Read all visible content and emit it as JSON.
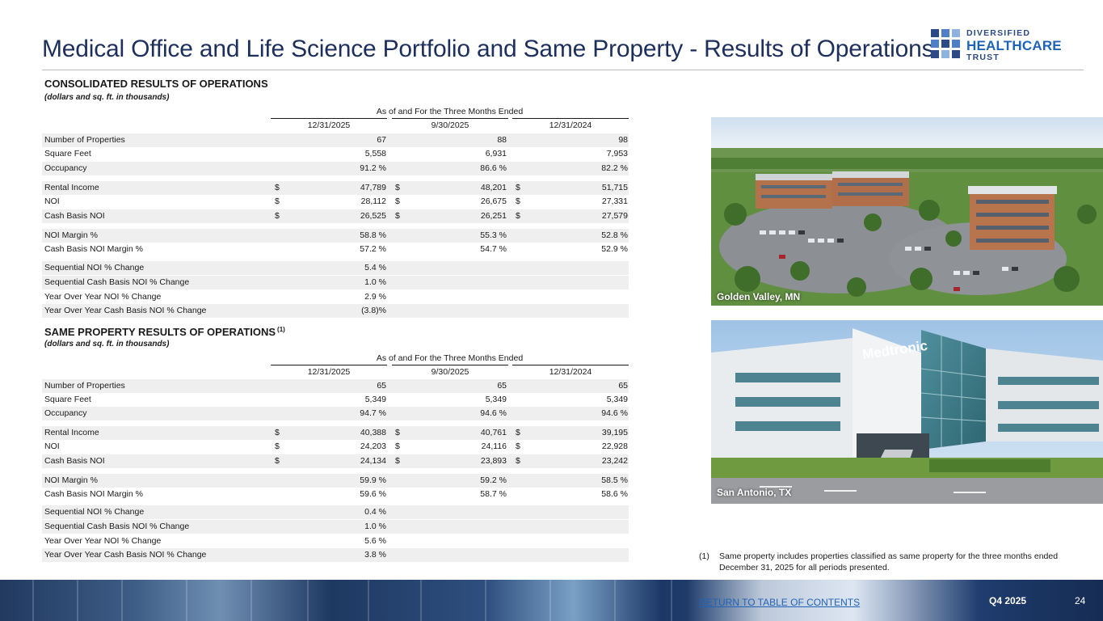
{
  "page": {
    "title": "Medical Office and Life Science Portfolio and Same Property - Results of Operations",
    "logo": {
      "line1": "DIVERSIFIED",
      "line2": "HEALTHCARE",
      "line3": "TRUST"
    }
  },
  "consolidated": {
    "title": "CONSOLIDATED RESULTS OF OPERATIONS",
    "subtitle": "(dollars and sq. ft. in thousands)",
    "group_header": "As of and For the Three Months Ended",
    "columns": [
      "12/31/2025",
      "9/30/2025",
      "12/31/2024"
    ],
    "rows": [
      {
        "label": "Number of Properties",
        "values": [
          "67",
          "88",
          "98"
        ],
        "dollar": false
      },
      {
        "label": "Square Feet",
        "values": [
          "5,558",
          "6,931",
          "7,953"
        ],
        "dollar": false
      },
      {
        "label": "Occupancy",
        "values": [
          "91.2 %",
          "86.6 %",
          "82.2 %"
        ],
        "dollar": false
      },
      {
        "label": "Rental Income",
        "values": [
          "47,789",
          "48,201",
          "51,715"
        ],
        "dollar": true
      },
      {
        "label": "NOI",
        "values": [
          "28,112",
          "26,675",
          "27,331"
        ],
        "dollar": true
      },
      {
        "label": "Cash Basis NOI",
        "values": [
          "26,525",
          "26,251",
          "27,579"
        ],
        "dollar": true
      },
      {
        "label": "NOI Margin %",
        "values": [
          "58.8 %",
          "55.3 %",
          "52.8 %"
        ],
        "dollar": false
      },
      {
        "label": "Cash Basis NOI Margin %",
        "values": [
          "57.2 %",
          "54.7 %",
          "52.9 %"
        ],
        "dollar": false
      },
      {
        "label": "Sequential NOI % Change",
        "values": [
          "5.4 %",
          "",
          ""
        ],
        "dollar": false
      },
      {
        "label": "Sequential Cash Basis NOI % Change",
        "values": [
          "1.0 %",
          "",
          ""
        ],
        "dollar": false
      },
      {
        "label": "Year Over Year NOI % Change",
        "values": [
          "2.9 %",
          "",
          ""
        ],
        "dollar": false
      },
      {
        "label": "Year Over Year Cash Basis NOI % Change",
        "values": [
          "(3.8)%",
          "",
          ""
        ],
        "dollar": false
      }
    ]
  },
  "same_property": {
    "title": "SAME PROPERTY RESULTS OF OPERATIONS",
    "title_note": "(1)",
    "subtitle": "(dollars and sq. ft. in thousands)",
    "group_header": "As of and For the Three Months Ended",
    "columns": [
      "12/31/2025",
      "9/30/2025",
      "12/31/2024"
    ],
    "rows": [
      {
        "label": "Number of Properties",
        "values": [
          "65",
          "65",
          "65"
        ],
        "dollar": false
      },
      {
        "label": "Square Feet",
        "values": [
          "5,349",
          "5,349",
          "5,349"
        ],
        "dollar": false
      },
      {
        "label": "Occupancy",
        "values": [
          "94.7 %",
          "94.6 %",
          "94.6 %"
        ],
        "dollar": false
      },
      {
        "label": "Rental Income",
        "values": [
          "40,388",
          "40,761",
          "39,195"
        ],
        "dollar": true
      },
      {
        "label": "NOI",
        "values": [
          "24,203",
          "24,116",
          "22,928"
        ],
        "dollar": true
      },
      {
        "label": "Cash Basis NOI",
        "values": [
          "24,134",
          "23,893",
          "23,242"
        ],
        "dollar": true
      },
      {
        "label": "NOI Margin %",
        "values": [
          "59.9 %",
          "59.2 %",
          "58.5 %"
        ],
        "dollar": false
      },
      {
        "label": "Cash Basis NOI Margin %",
        "values": [
          "59.6 %",
          "58.7 %",
          "58.6 %"
        ],
        "dollar": false
      },
      {
        "label": "Sequential NOI % Change",
        "values": [
          "0.4 %",
          "",
          ""
        ],
        "dollar": false
      },
      {
        "label": "Sequential Cash Basis NOI % Change",
        "values": [
          "1.0 %",
          "",
          ""
        ],
        "dollar": false
      },
      {
        "label": "Year Over Year NOI % Change",
        "values": [
          "5.6 %",
          "",
          ""
        ],
        "dollar": false
      },
      {
        "label": "Year Over Year Cash Basis NOI % Change",
        "values": [
          "3.8 %",
          "",
          ""
        ],
        "dollar": false
      }
    ]
  },
  "dollar_sign": "$",
  "photos": {
    "top_caption": "Golden Valley, MN",
    "bottom_caption": "San Antonio, TX",
    "bottom_sign": "Medtronic"
  },
  "footnote": {
    "mark": "(1)",
    "text": "Same property includes properties classified as same property for the three months ended December 31, 2025 for all periods presented."
  },
  "footer": {
    "link": "RETURN TO TABLE OF CONTENTS",
    "quarter": "Q4 2025",
    "page_number": "24"
  },
  "colors": {
    "title_blue": "#1d2f5c",
    "brand_blue": "#1f63b6",
    "row_shade": "#efefef"
  }
}
